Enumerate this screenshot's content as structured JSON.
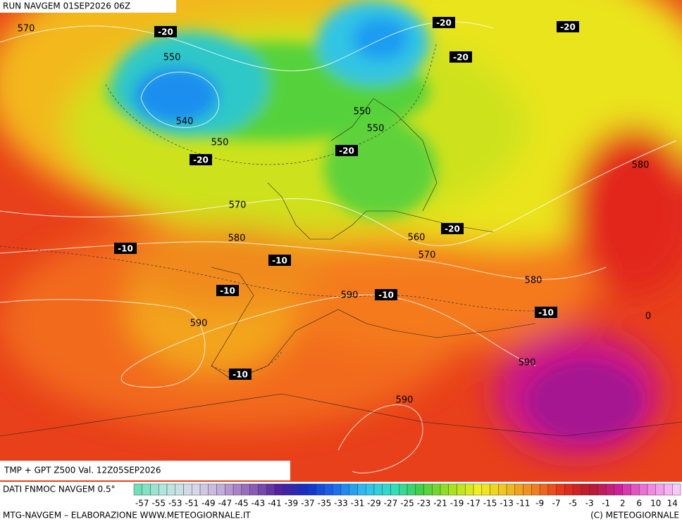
{
  "header_title": "RUN NAVGEM 01SEP2026 06Z",
  "contour_labels": [
    "570",
    "550",
    "540",
    "550",
    "550",
    "550",
    "570",
    "580",
    "560",
    "570",
    "580",
    "590",
    "590",
    "590",
    "590",
    "580",
    "0"
  ],
  "temperature_labels": [
    "-20",
    "-20",
    "-20",
    "-20",
    "-20",
    "-20",
    "-20",
    "-10",
    "-10",
    "-10",
    "-10",
    "-10",
    "-10"
  ],
  "footer": {
    "product": "TMP + GPT Z500 Val. 12Z05SEP2026",
    "source": "DATI FNMOC NAVGEM 0.5°",
    "colorbar_ticks": [
      "-57",
      "-55",
      "-53",
      "-51",
      "-49",
      "-47",
      "-45",
      "-43",
      "-41",
      "-39",
      "-37",
      "-35",
      "-33",
      "-31",
      "-29",
      "-27",
      "-25",
      "-23",
      "-21",
      "-19",
      "-17",
      "-15",
      "-13",
      "-11",
      "-9",
      "-7",
      "-5",
      "-3",
      "-1",
      "2",
      "6",
      "10",
      "14"
    ],
    "credit": "MTG-NAVGEM – ELABORAZIONE WWW.METEOGIORNALE.IT",
    "copyright": "(C) METEOGIORNALE"
  }
}
